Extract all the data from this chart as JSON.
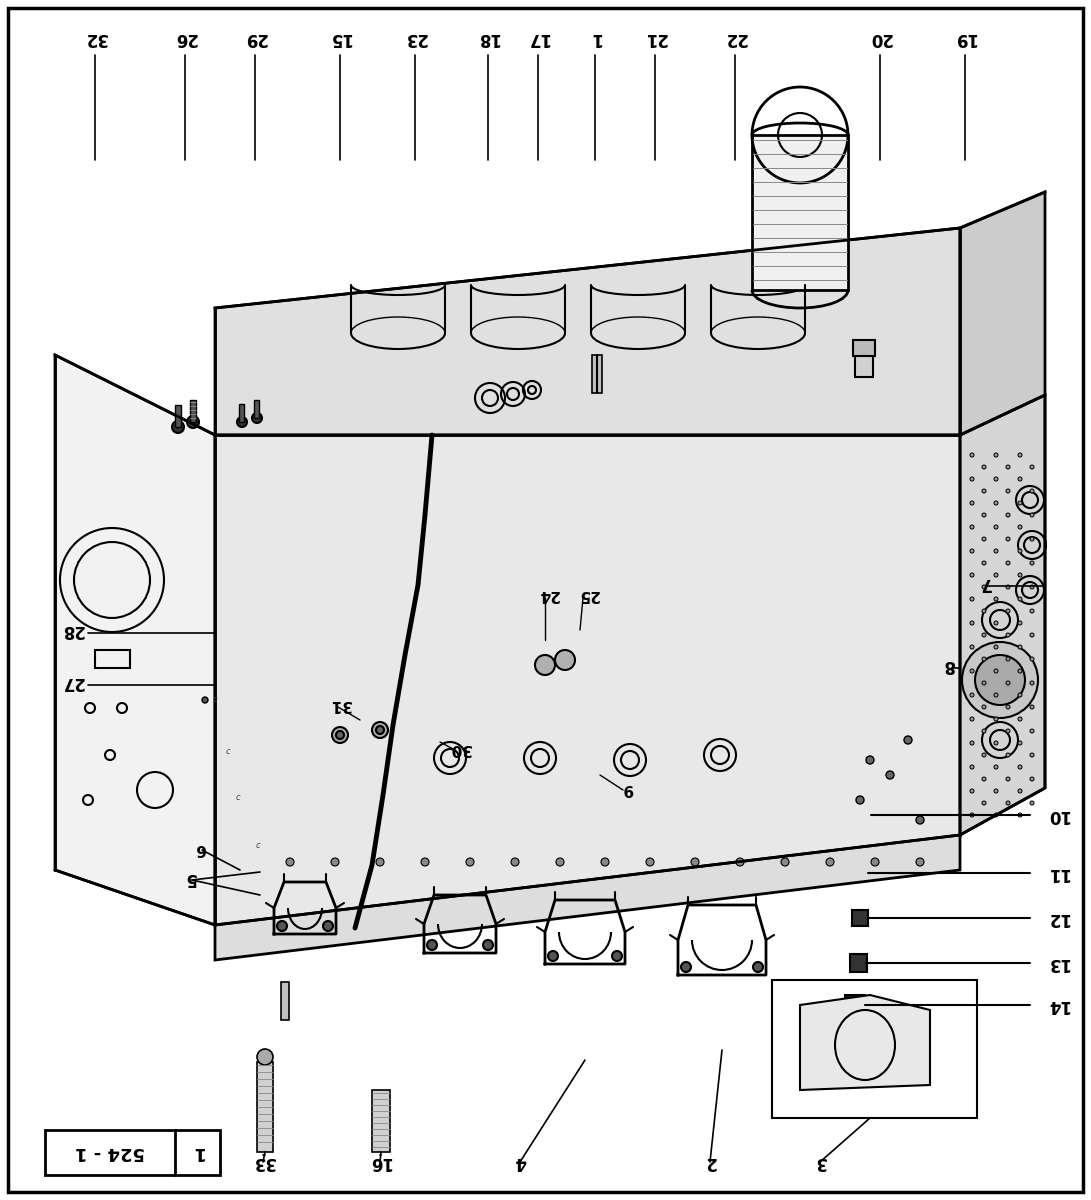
{
  "title": "524 - 1 | 1",
  "background_color": "#ffffff",
  "border_color": "#000000",
  "fig_width": 10.91,
  "fig_height": 12.0,
  "dpi": 100,
  "header_text": "524 - 1",
  "header_sub": "1"
}
